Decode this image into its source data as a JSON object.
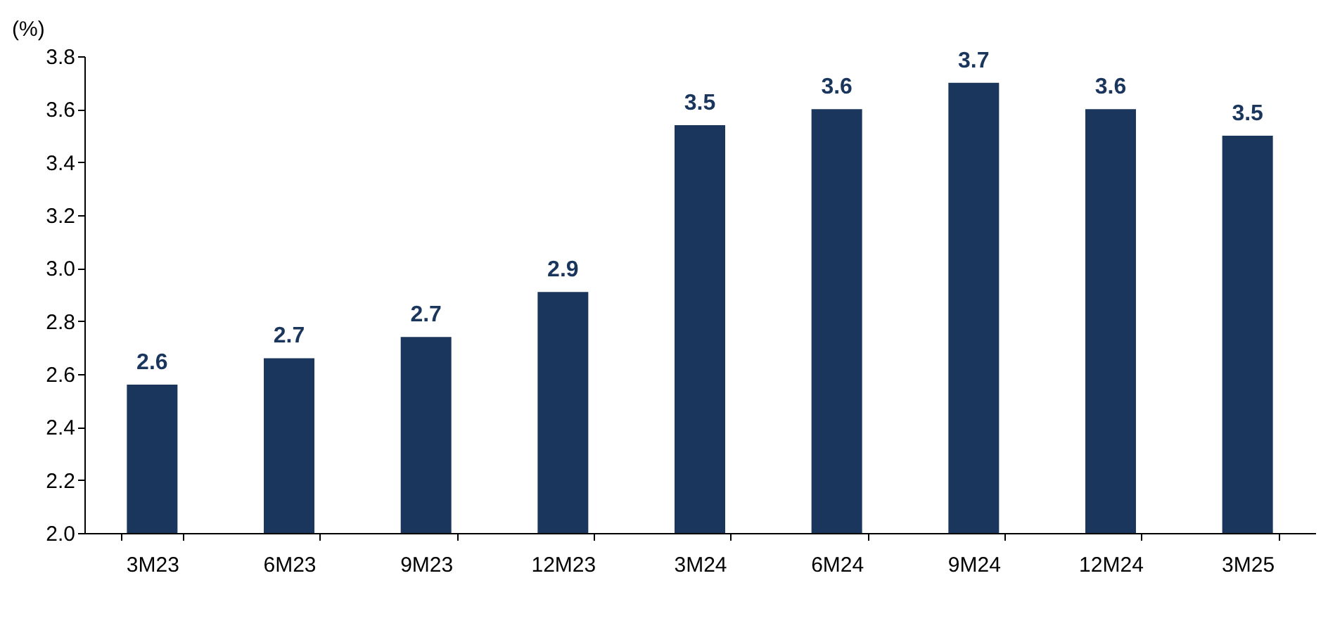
{
  "chart_data": {
    "type": "bar",
    "ylabel": "(%)",
    "categories": [
      "3M23",
      "6M23",
      "9M23",
      "12M23",
      "3M24",
      "6M24",
      "9M24",
      "12M24",
      "3M25"
    ],
    "values": [
      2.56,
      2.66,
      2.74,
      2.91,
      3.54,
      3.6,
      3.7,
      3.6,
      3.5
    ],
    "value_labels": [
      "2.6",
      "2.7",
      "2.7",
      "2.9",
      "3.5",
      "3.6",
      "3.7",
      "3.6",
      "3.5"
    ],
    "color": "#1b365d",
    "ylim": [
      2.0,
      3.8
    ],
    "yticks": [
      {
        "value": 2,
        "label": "2.0"
      },
      2.2,
      2.4,
      2.6,
      2.8,
      {
        "value": 3,
        "label": "3.0"
      },
      3.2,
      3.4,
      3.6,
      3.8
    ],
    "grid": false
  }
}
